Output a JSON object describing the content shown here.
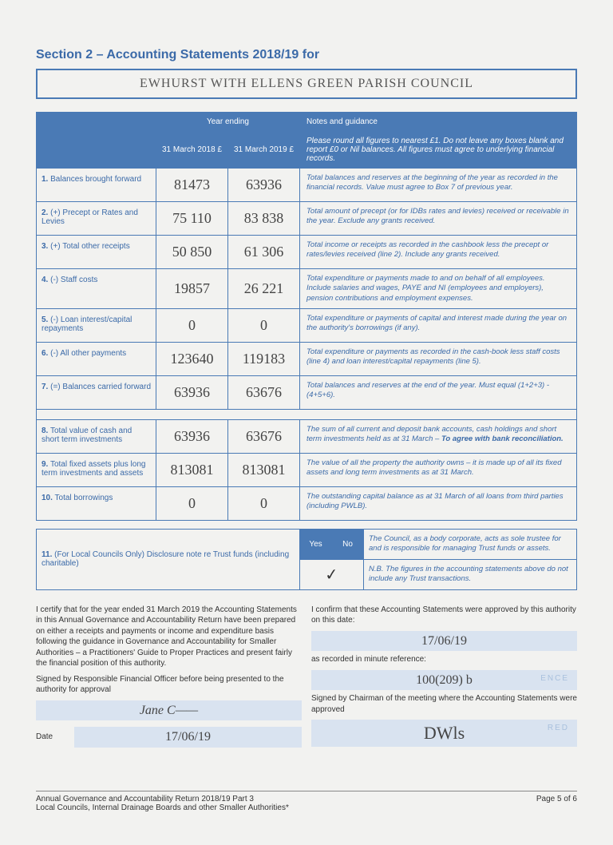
{
  "title": "Section 2 – Accounting Statements 2018/19 for",
  "authority_name": "EWHURST WITH ELLENS GREEN PARISH COUNCIL",
  "header": {
    "year_ending": "Year ending",
    "col1": "31 March 2018 £",
    "col2": "31 March 2019 £",
    "notes": "Notes and guidance",
    "notes_sub": "Please round all figures to nearest £1. Do not leave any boxes blank and report £0 or Nil balances. All figures must agree to underlying financial records."
  },
  "rows": [
    {
      "num": "1.",
      "label": "Balances brought forward",
      "v1": "81473",
      "v2": "63936",
      "note": "Total balances and reserves at the beginning of the year as recorded in the financial records. Value must agree to Box 7 of previous year."
    },
    {
      "num": "2.",
      "label": "(+) Precept or Rates and Levies",
      "v1": "75 110",
      "v2": "83 838",
      "note": "Total amount of precept (or for IDBs rates and levies) received or receivable in the year. Exclude any grants received."
    },
    {
      "num": "3.",
      "label": "(+) Total other receipts",
      "v1": "50 850",
      "v2": "61 306",
      "note": "Total income or receipts as recorded in the cashbook less the precept or rates/levies received (line 2). Include any grants received."
    },
    {
      "num": "4.",
      "label": "(-) Staff costs",
      "v1": "19857",
      "v2": "26 221",
      "note": "Total expenditure or payments made to and on behalf of all employees. Include salaries and wages, PAYE and NI (employees and employers), pension contributions and employment expenses."
    },
    {
      "num": "5.",
      "label": "(-) Loan interest/capital repayments",
      "v1": "0",
      "v2": "0",
      "note": "Total expenditure or payments of capital and interest made during the year on the authority's borrowings (if any)."
    },
    {
      "num": "6.",
      "label": "(-) All other payments",
      "v1": "123640",
      "v2": "119183",
      "note": "Total expenditure or payments as recorded in the cash-book less staff costs (line 4) and loan interest/capital repayments (line 5)."
    },
    {
      "num": "7.",
      "label": "(=) Balances carried forward",
      "v1": "63936",
      "v2": "63676",
      "note": "Total balances and reserves at the end of the year. Must equal (1+2+3) - (4+5+6)."
    }
  ],
  "rows2": [
    {
      "num": "8.",
      "label": "Total value of cash and short term investments",
      "v1": "63936",
      "v2": "63676",
      "note": "The sum of all current and deposit bank accounts, cash holdings and short term investments held as at 31 March – ",
      "note_bold": "To agree with bank reconciliation."
    },
    {
      "num": "9.",
      "label": "Total fixed assets plus long term investments and assets",
      "v1": "813081",
      "v2": "813081",
      "note": "The value of all the property the authority owns – it is made up of all its fixed assets and long term investments as at 31 March."
    },
    {
      "num": "10.",
      "label": "Total borrowings",
      "v1": "0",
      "v2": "0",
      "note": "The outstanding capital balance as at 31 March of all loans from third parties (including PWLB)."
    }
  ],
  "disclosure": {
    "label": "(For Local Councils Only) Disclosure note re Trust funds (including charitable)",
    "num": "11.",
    "yes": "Yes",
    "no": "No",
    "tick": "✓",
    "note1": "The Council, as a body corporate, acts as sole trustee for and is responsible for managing Trust funds or assets.",
    "note2": "N.B. The figures in the accounting statements above do not include any Trust transactions."
  },
  "cert_left": {
    "p1": "I certify that for the year ended 31 March 2019 the Accounting Statements in this Annual Governance and Accountability Return have been prepared on either a receipts and payments or income and expenditure basis following the guidance in Governance and Accountability for Smaller Authorities – a Practitioners' Guide to Proper Practices and present fairly the financial position of this authority.",
    "p2": "Signed by Responsible Financial Officer before being presented to the authority for approval",
    "sig": "Jane C——",
    "date_label": "Date",
    "date": "17/06/19"
  },
  "cert_right": {
    "p1": "I confirm that these Accounting Statements were approved by this authority on this date:",
    "date": "17/06/19",
    "p2": "as recorded in minute reference:",
    "minute": "100(209) b",
    "p3": "Signed by Chairman of the meeting where the Accounting Statements were approved",
    "sig": "DWls"
  },
  "footer": {
    "left1": "Annual Governance and Accountability Return 2018/19 Part 3",
    "left2": "Local Councils, Internal Drainage Boards and other Smaller Authorities*",
    "right": "Page 5 of 6"
  }
}
